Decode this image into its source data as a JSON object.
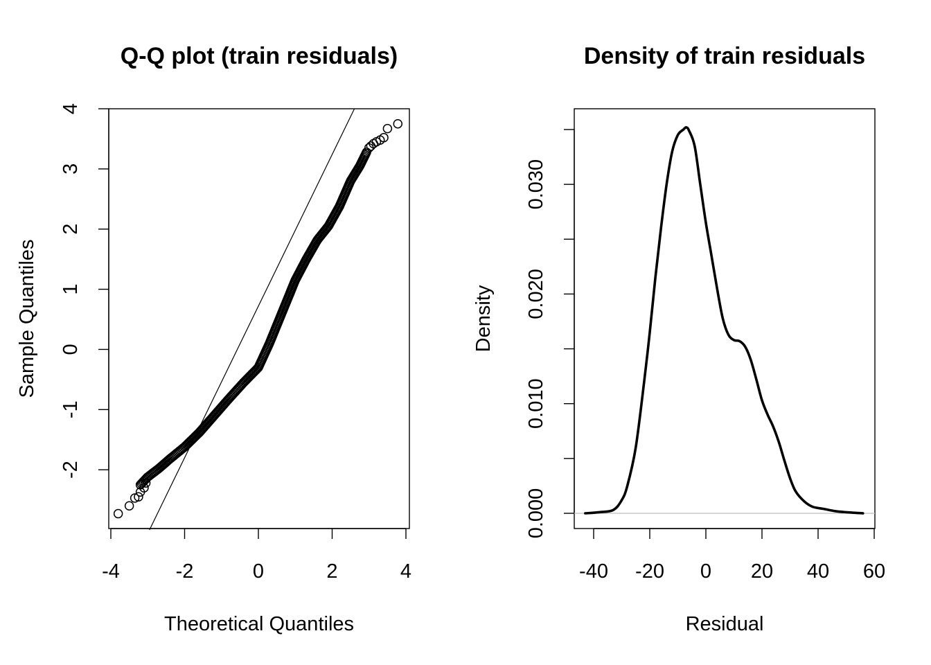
{
  "chart_data": [
    {
      "type": "scatter",
      "title": "Q-Q plot (train residuals)",
      "xlabel": "Theoretical Quantiles",
      "ylabel": "Sample Quantiles",
      "xlim": [
        -4,
        4
      ],
      "ylim": [
        -3,
        4
      ],
      "xticks": [
        "-4",
        "-2",
        "0",
        "2",
        "4"
      ],
      "yticks": [
        "-2",
        "-1",
        "0",
        "1",
        "2",
        "3",
        "4"
      ],
      "reference_line": {
        "slope": 1.26,
        "intercept": 0.72
      },
      "grid": false,
      "curve": [
        [
          -3.2,
          -2.25
        ],
        [
          -3.0,
          -2.12
        ],
        [
          -2.7,
          -1.98
        ],
        [
          -2.4,
          -1.82
        ],
        [
          -2.0,
          -1.62
        ],
        [
          -1.6,
          -1.38
        ],
        [
          -1.2,
          -1.1
        ],
        [
          -0.8,
          -0.82
        ],
        [
          -0.4,
          -0.55
        ],
        [
          0.0,
          -0.3
        ],
        [
          0.3,
          0.1
        ],
        [
          0.6,
          0.55
        ],
        [
          0.8,
          0.85
        ],
        [
          1.0,
          1.15
        ],
        [
          1.3,
          1.5
        ],
        [
          1.6,
          1.82
        ],
        [
          1.9,
          2.05
        ],
        [
          2.2,
          2.38
        ],
        [
          2.5,
          2.8
        ],
        [
          2.75,
          3.05
        ],
        [
          2.95,
          3.3
        ]
      ],
      "outliers": [
        [
          -3.8,
          -2.73
        ],
        [
          -3.5,
          -2.6
        ],
        [
          -3.35,
          -2.47
        ],
        [
          -3.25,
          -2.45
        ],
        [
          -3.2,
          -2.37
        ],
        [
          -3.1,
          -2.3
        ],
        [
          -3.05,
          -2.22
        ],
        [
          3.0,
          3.35
        ],
        [
          3.05,
          3.38
        ],
        [
          3.12,
          3.42
        ],
        [
          3.2,
          3.45
        ],
        [
          3.3,
          3.48
        ],
        [
          3.4,
          3.52
        ],
        [
          3.5,
          3.67
        ],
        [
          3.78,
          3.75
        ]
      ]
    },
    {
      "type": "line",
      "title": "Density of train residuals",
      "xlabel": "Residual",
      "ylabel": "Density",
      "xlim": [
        -40,
        60
      ],
      "ylim": [
        0,
        0.035
      ],
      "xticks": [
        "-40",
        "-20",
        "0",
        "20",
        "40",
        "60"
      ],
      "yticks": [
        "0.000",
        "0.010",
        "0.020",
        "0.030"
      ],
      "grid": false,
      "baseline": 0,
      "x": [
        -43,
        -38,
        -33,
        -30,
        -28,
        -25,
        -22,
        -20,
        -18,
        -16,
        -14,
        -12,
        -10,
        -8,
        -7,
        -6,
        -4,
        -2,
        0,
        2,
        4,
        6,
        8,
        10,
        12,
        14,
        16,
        18,
        20,
        22,
        24,
        26,
        28,
        30,
        32,
        35,
        38,
        42,
        46,
        50,
        56
      ],
      "y": [
        0.0,
        0.0001,
        0.0003,
        0.0012,
        0.0025,
        0.006,
        0.012,
        0.0165,
        0.0215,
        0.026,
        0.03,
        0.033,
        0.0345,
        0.035,
        0.0352,
        0.0349,
        0.0335,
        0.03,
        0.0265,
        0.0235,
        0.0205,
        0.0178,
        0.0163,
        0.0158,
        0.0157,
        0.0152,
        0.014,
        0.0122,
        0.0103,
        0.009,
        0.0079,
        0.0065,
        0.0048,
        0.0032,
        0.002,
        0.0011,
        0.0006,
        0.0004,
        0.0002,
        0.0001,
        0.0
      ]
    }
  ]
}
